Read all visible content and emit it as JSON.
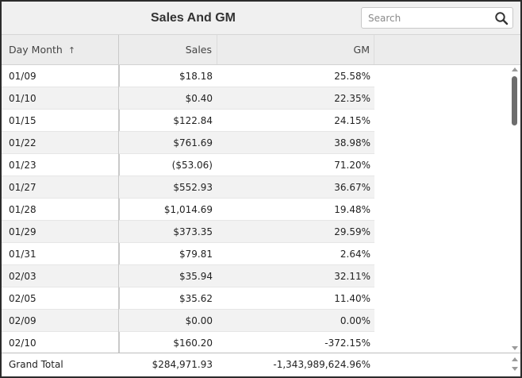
{
  "widget": {
    "title": "Sales And GM"
  },
  "search": {
    "placeholder": "Search",
    "value": ""
  },
  "columns": {
    "day": "Day Month",
    "sort_indicator": "↑",
    "sales": "Sales",
    "gm": "GM"
  },
  "rows": [
    {
      "day": "01/09",
      "sales": "$18.18",
      "gm": "25.58%"
    },
    {
      "day": "01/10",
      "sales": "$0.40",
      "gm": "22.35%"
    },
    {
      "day": "01/15",
      "sales": "$122.84",
      "gm": "24.15%"
    },
    {
      "day": "01/22",
      "sales": "$761.69",
      "gm": "38.98%"
    },
    {
      "day": "01/23",
      "sales": "($53.06)",
      "gm": "71.20%"
    },
    {
      "day": "01/27",
      "sales": "$552.93",
      "gm": "36.67%"
    },
    {
      "day": "01/28",
      "sales": "$1,014.69",
      "gm": "19.48%"
    },
    {
      "day": "01/29",
      "sales": "$373.35",
      "gm": "29.59%"
    },
    {
      "day": "01/31",
      "sales": "$79.81",
      "gm": "2.64%"
    },
    {
      "day": "02/03",
      "sales": "$35.94",
      "gm": "32.11%"
    },
    {
      "day": "02/05",
      "sales": "$35.62",
      "gm": "11.40%"
    },
    {
      "day": "02/09",
      "sales": "$0.00",
      "gm": "0.00%"
    },
    {
      "day": "02/10",
      "sales": "$160.20",
      "gm": "-372.15%"
    }
  ],
  "total": {
    "label": "Grand Total",
    "sales": "$284,971.93",
    "gm": "-1,343,989,624.96%"
  },
  "icons": {
    "search": "search-icon",
    "sort": "sort-ascending-icon",
    "scroll_up": "scroll-up-icon",
    "scroll_down": "scroll-down-icon"
  },
  "colors": {
    "header_bg": "#f0f0f0",
    "column_header_bg": "#ececec",
    "alt_row_bg": "#f2f2f2",
    "border": "#2b2b2b",
    "scroll_thumb": "#6d6d6d"
  }
}
